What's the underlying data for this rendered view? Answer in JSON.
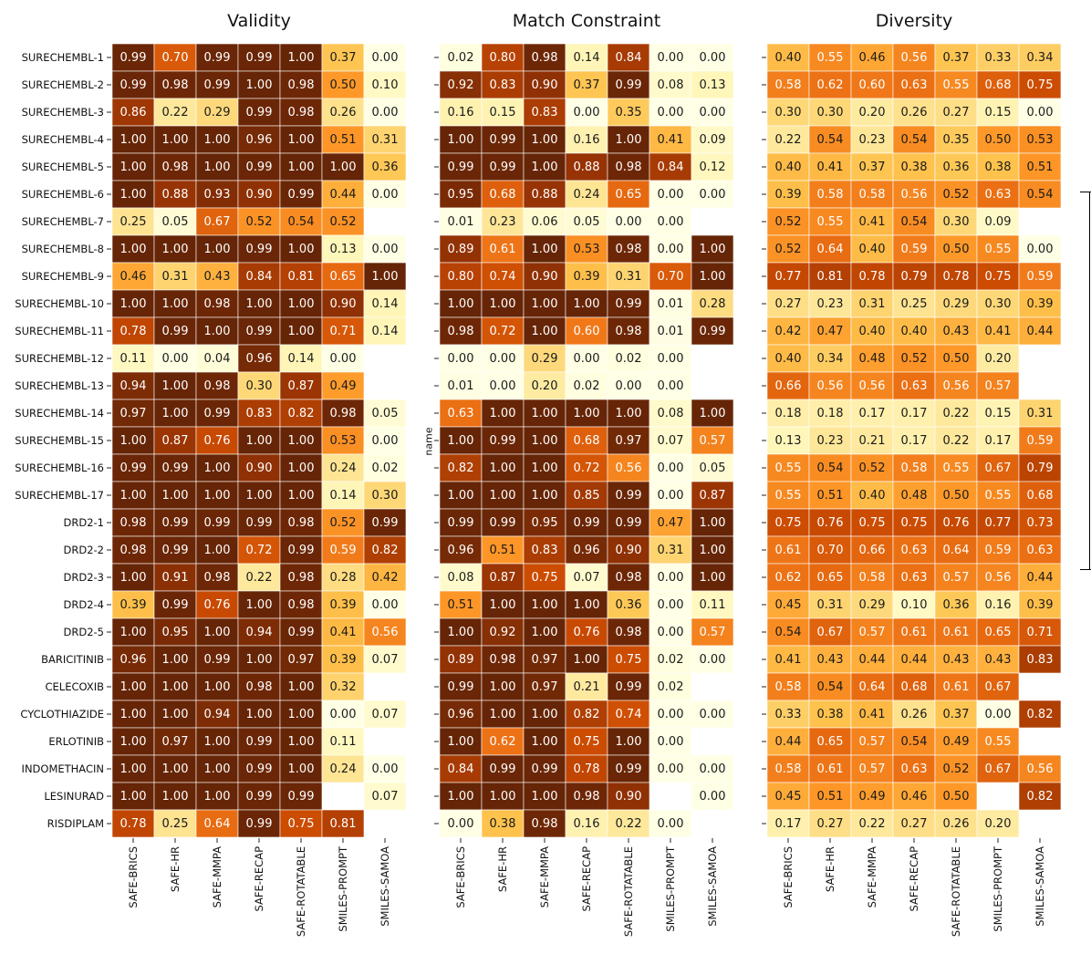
{
  "chart_data": {
    "type": "heatmap",
    "ylabel": "name",
    "columns": [
      "SAFE-BRICS",
      "SAFE-HR",
      "SAFE-MMPA",
      "SAFE-RECAP",
      "SAFE-ROTATABLE",
      "SMILES-PROMPT",
      "SMILES-SAMOA"
    ],
    "rows": [
      "SURECHEMBL-1",
      "SURECHEMBL-2",
      "SURECHEMBL-3",
      "SURECHEMBL-4",
      "SURECHEMBL-5",
      "SURECHEMBL-6",
      "SURECHEMBL-7",
      "SURECHEMBL-8",
      "SURECHEMBL-9",
      "SURECHEMBL-10",
      "SURECHEMBL-11",
      "SURECHEMBL-12",
      "SURECHEMBL-13",
      "SURECHEMBL-14",
      "SURECHEMBL-15",
      "SURECHEMBL-16",
      "SURECHEMBL-17",
      "DRD2-1",
      "DRD2-2",
      "DRD2-3",
      "DRD2-4",
      "DRD2-5",
      "BARICITINIB",
      "CELECOXIB",
      "CYCLOTHIAZIDE",
      "ERLOTINIB",
      "INDOMETHACIN",
      "LESINURAD",
      "RISDIPLAM"
    ],
    "colormap": "YlOrBr",
    "vrange": [
      0,
      1
    ],
    "panels": [
      {
        "title": "Validity",
        "values": [
          [
            0.99,
            0.7,
            0.99,
            0.99,
            1.0,
            0.37,
            0.0
          ],
          [
            0.99,
            0.98,
            0.99,
            1.0,
            0.98,
            0.5,
            0.1
          ],
          [
            0.86,
            0.22,
            0.29,
            0.99,
            0.98,
            0.26,
            0.0
          ],
          [
            1.0,
            1.0,
            1.0,
            0.96,
            1.0,
            0.51,
            0.31
          ],
          [
            1.0,
            0.98,
            1.0,
            0.99,
            1.0,
            1.0,
            0.36
          ],
          [
            1.0,
            0.88,
            0.93,
            0.9,
            0.99,
            0.44,
            0.0
          ],
          [
            0.25,
            0.05,
            0.67,
            0.52,
            0.54,
            0.52,
            null
          ],
          [
            1.0,
            1.0,
            1.0,
            0.99,
            1.0,
            0.13,
            0.0
          ],
          [
            0.46,
            0.31,
            0.43,
            0.84,
            0.81,
            0.65,
            1.0
          ],
          [
            1.0,
            1.0,
            0.98,
            1.0,
            1.0,
            0.9,
            0.14
          ],
          [
            0.78,
            0.99,
            1.0,
            0.99,
            1.0,
            0.71,
            0.14
          ],
          [
            0.11,
            0.0,
            0.04,
            0.96,
            0.14,
            0.0,
            null
          ],
          [
            0.94,
            1.0,
            0.98,
            0.3,
            0.87,
            0.49,
            null
          ],
          [
            0.97,
            1.0,
            0.99,
            0.83,
            0.82,
            0.98,
            0.05
          ],
          [
            1.0,
            0.87,
            0.76,
            1.0,
            1.0,
            0.53,
            0.0
          ],
          [
            0.99,
            0.99,
            1.0,
            0.9,
            1.0,
            0.24,
            0.02
          ],
          [
            1.0,
            1.0,
            1.0,
            1.0,
            1.0,
            0.14,
            0.3
          ],
          [
            0.98,
            0.99,
            0.99,
            0.99,
            0.98,
            0.52,
            0.99
          ],
          [
            0.98,
            0.99,
            1.0,
            0.72,
            0.99,
            0.59,
            0.82
          ],
          [
            1.0,
            0.91,
            0.98,
            0.22,
            0.98,
            0.28,
            0.42
          ],
          [
            0.39,
            0.99,
            0.76,
            1.0,
            0.98,
            0.39,
            0.0
          ],
          [
            1.0,
            0.95,
            1.0,
            0.94,
            0.99,
            0.41,
            0.56
          ],
          [
            0.96,
            1.0,
            0.99,
            1.0,
            0.97,
            0.39,
            0.07
          ],
          [
            1.0,
            1.0,
            1.0,
            0.98,
            1.0,
            0.32,
            null
          ],
          [
            1.0,
            1.0,
            0.94,
            1.0,
            1.0,
            0.0,
            0.07
          ],
          [
            1.0,
            0.97,
            1.0,
            0.99,
            1.0,
            0.11,
            null
          ],
          [
            1.0,
            1.0,
            1.0,
            0.99,
            1.0,
            0.24,
            0.0
          ],
          [
            1.0,
            1.0,
            1.0,
            0.99,
            0.99,
            null,
            0.07
          ],
          [
            0.78,
            0.25,
            0.64,
            0.99,
            0.75,
            0.81,
            null
          ]
        ]
      },
      {
        "title": "Match Constraint",
        "values": [
          [
            0.02,
            0.8,
            0.98,
            0.14,
            0.84,
            0.0,
            0.0
          ],
          [
            0.92,
            0.83,
            0.9,
            0.37,
            0.99,
            0.08,
            0.13
          ],
          [
            0.16,
            0.15,
            0.83,
            0.0,
            0.35,
            0.0,
            0.0
          ],
          [
            1.0,
            0.99,
            1.0,
            0.16,
            1.0,
            0.41,
            0.09
          ],
          [
            0.99,
            0.99,
            1.0,
            0.88,
            0.98,
            0.84,
            0.12
          ],
          [
            0.95,
            0.68,
            0.88,
            0.24,
            0.65,
            0.0,
            0.0
          ],
          [
            0.01,
            0.23,
            0.06,
            0.05,
            0.0,
            0.0,
            null
          ],
          [
            0.89,
            0.61,
            1.0,
            0.53,
            0.98,
            0.0,
            1.0
          ],
          [
            0.8,
            0.74,
            0.9,
            0.39,
            0.31,
            0.7,
            1.0
          ],
          [
            1.0,
            1.0,
            1.0,
            1.0,
            0.99,
            0.01,
            0.28
          ],
          [
            0.98,
            0.72,
            1.0,
            0.6,
            0.98,
            0.01,
            0.99
          ],
          [
            0.0,
            0.0,
            0.29,
            0.0,
            0.02,
            0.0,
            null
          ],
          [
            0.01,
            0.0,
            0.2,
            0.02,
            0.0,
            0.0,
            null
          ],
          [
            0.63,
            1.0,
            1.0,
            1.0,
            1.0,
            0.08,
            1.0
          ],
          [
            1.0,
            0.99,
            1.0,
            0.68,
            0.97,
            0.07,
            0.57
          ],
          [
            0.82,
            1.0,
            1.0,
            0.72,
            0.56,
            0.0,
            0.05
          ],
          [
            1.0,
            1.0,
            1.0,
            0.85,
            0.99,
            0.0,
            0.87
          ],
          [
            0.99,
            0.99,
            0.95,
            0.99,
            0.99,
            0.47,
            1.0
          ],
          [
            0.96,
            0.51,
            0.83,
            0.96,
            0.9,
            0.31,
            1.0
          ],
          [
            0.08,
            0.87,
            0.75,
            0.07,
            0.98,
            0.0,
            1.0
          ],
          [
            0.51,
            1.0,
            1.0,
            1.0,
            0.36,
            0.0,
            0.11
          ],
          [
            1.0,
            0.92,
            1.0,
            0.76,
            0.98,
            0.0,
            0.57
          ],
          [
            0.89,
            0.98,
            0.97,
            1.0,
            0.75,
            0.02,
            0.0
          ],
          [
            0.99,
            1.0,
            0.97,
            0.21,
            0.99,
            0.02,
            null
          ],
          [
            0.96,
            1.0,
            1.0,
            0.82,
            0.74,
            0.0,
            0.0
          ],
          [
            1.0,
            0.62,
            1.0,
            0.75,
            1.0,
            0.0,
            null
          ],
          [
            0.84,
            0.99,
            0.99,
            0.78,
            0.99,
            0.0,
            0.0
          ],
          [
            1.0,
            1.0,
            1.0,
            0.98,
            0.9,
            null,
            0.0
          ],
          [
            0.0,
            0.38,
            0.98,
            0.16,
            0.22,
            0.0,
            null
          ]
        ]
      },
      {
        "title": "Diversity",
        "values": [
          [
            0.4,
            0.55,
            0.46,
            0.56,
            0.37,
            0.33,
            0.34
          ],
          [
            0.58,
            0.62,
            0.6,
            0.63,
            0.55,
            0.68,
            0.75
          ],
          [
            0.3,
            0.3,
            0.2,
            0.26,
            0.27,
            0.15,
            0.0
          ],
          [
            0.22,
            0.54,
            0.23,
            0.54,
            0.35,
            0.5,
            0.53
          ],
          [
            0.4,
            0.41,
            0.37,
            0.38,
            0.36,
            0.38,
            0.51
          ],
          [
            0.39,
            0.58,
            0.58,
            0.56,
            0.52,
            0.63,
            0.54
          ],
          [
            0.52,
            0.55,
            0.41,
            0.54,
            0.3,
            0.09,
            null
          ],
          [
            0.52,
            0.64,
            0.4,
            0.59,
            0.5,
            0.55,
            0.0
          ],
          [
            0.77,
            0.81,
            0.78,
            0.79,
            0.78,
            0.75,
            0.59
          ],
          [
            0.27,
            0.23,
            0.31,
            0.25,
            0.29,
            0.3,
            0.39
          ],
          [
            0.42,
            0.47,
            0.4,
            0.4,
            0.43,
            0.41,
            0.44
          ],
          [
            0.4,
            0.34,
            0.48,
            0.52,
            0.5,
            0.2,
            null
          ],
          [
            0.66,
            0.56,
            0.56,
            0.63,
            0.56,
            0.57,
            null
          ],
          [
            0.18,
            0.18,
            0.17,
            0.17,
            0.22,
            0.15,
            0.31
          ],
          [
            0.13,
            0.23,
            0.21,
            0.17,
            0.22,
            0.17,
            0.59
          ],
          [
            0.55,
            0.54,
            0.52,
            0.58,
            0.55,
            0.67,
            0.79
          ],
          [
            0.55,
            0.51,
            0.4,
            0.48,
            0.5,
            0.55,
            0.68
          ],
          [
            0.75,
            0.76,
            0.75,
            0.75,
            0.76,
            0.77,
            0.73
          ],
          [
            0.61,
            0.7,
            0.66,
            0.63,
            0.64,
            0.59,
            0.63
          ],
          [
            0.62,
            0.65,
            0.58,
            0.63,
            0.57,
            0.56,
            0.44
          ],
          [
            0.45,
            0.31,
            0.29,
            0.1,
            0.36,
            0.16,
            0.39
          ],
          [
            0.54,
            0.67,
            0.57,
            0.61,
            0.61,
            0.65,
            0.71
          ],
          [
            0.41,
            0.43,
            0.44,
            0.44,
            0.43,
            0.43,
            0.83
          ],
          [
            0.58,
            0.54,
            0.64,
            0.68,
            0.61,
            0.67,
            null
          ],
          [
            0.33,
            0.38,
            0.41,
            0.26,
            0.37,
            0.0,
            0.82
          ],
          [
            0.44,
            0.65,
            0.57,
            0.54,
            0.49,
            0.55,
            null
          ],
          [
            0.58,
            0.61,
            0.57,
            0.63,
            0.52,
            0.67,
            0.56
          ],
          [
            0.45,
            0.51,
            0.49,
            0.46,
            0.5,
            null,
            0.82
          ],
          [
            0.17,
            0.27,
            0.22,
            0.27,
            0.26,
            0.2,
            null
          ]
        ]
      }
    ]
  }
}
